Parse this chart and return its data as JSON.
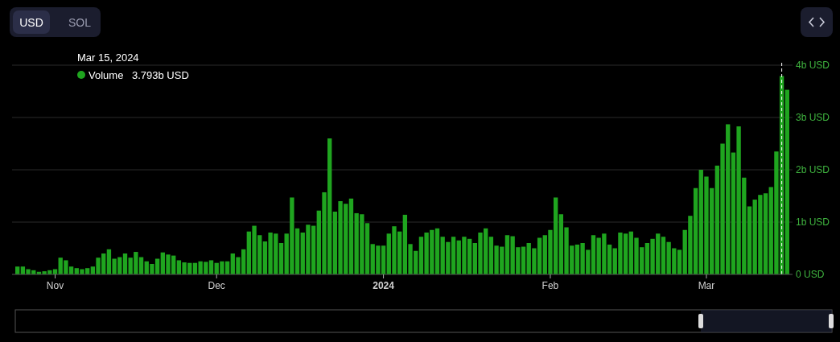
{
  "chart_data": {
    "type": "bar",
    "x": [
      "2023-10-25",
      "2023-10-26",
      "2023-10-27",
      "2023-10-28",
      "2023-10-29",
      "2023-10-30",
      "2023-10-31",
      "2023-11-01",
      "2023-11-02",
      "2023-11-03",
      "2023-11-04",
      "2023-11-05",
      "2023-11-06",
      "2023-11-07",
      "2023-11-08",
      "2023-11-09",
      "2023-11-10",
      "2023-11-11",
      "2023-11-12",
      "2023-11-13",
      "2023-11-14",
      "2023-11-15",
      "2023-11-16",
      "2023-11-17",
      "2023-11-18",
      "2023-11-19",
      "2023-11-20",
      "2023-11-21",
      "2023-11-22",
      "2023-11-23",
      "2023-11-24",
      "2023-11-25",
      "2023-11-26",
      "2023-11-27",
      "2023-11-28",
      "2023-11-29",
      "2023-11-30",
      "2023-12-01",
      "2023-12-02",
      "2023-12-03",
      "2023-12-04",
      "2023-12-05",
      "2023-12-06",
      "2023-12-07",
      "2023-12-08",
      "2023-12-09",
      "2023-12-10",
      "2023-12-11",
      "2023-12-12",
      "2023-12-13",
      "2023-12-14",
      "2023-12-15",
      "2023-12-16",
      "2023-12-17",
      "2023-12-18",
      "2023-12-19",
      "2023-12-20",
      "2023-12-21",
      "2023-12-22",
      "2023-12-23",
      "2023-12-24",
      "2023-12-25",
      "2023-12-26",
      "2023-12-27",
      "2023-12-28",
      "2023-12-29",
      "2023-12-30",
      "2023-12-31",
      "2024-01-01",
      "2024-01-02",
      "2024-01-03",
      "2024-01-04",
      "2024-01-05",
      "2024-01-06",
      "2024-01-07",
      "2024-01-08",
      "2024-01-09",
      "2024-01-10",
      "2024-01-11",
      "2024-01-12",
      "2024-01-13",
      "2024-01-14",
      "2024-01-15",
      "2024-01-16",
      "2024-01-17",
      "2024-01-18",
      "2024-01-19",
      "2024-01-20",
      "2024-01-21",
      "2024-01-22",
      "2024-01-23",
      "2024-01-24",
      "2024-01-25",
      "2024-01-26",
      "2024-01-27",
      "2024-01-28",
      "2024-01-29",
      "2024-01-30",
      "2024-01-31",
      "2024-02-01",
      "2024-02-02",
      "2024-02-03",
      "2024-02-04",
      "2024-02-05",
      "2024-02-06",
      "2024-02-07",
      "2024-02-08",
      "2024-02-09",
      "2024-02-10",
      "2024-02-11",
      "2024-02-12",
      "2024-02-13",
      "2024-02-14",
      "2024-02-15",
      "2024-02-16",
      "2024-02-17",
      "2024-02-18",
      "2024-02-19",
      "2024-02-20",
      "2024-02-21",
      "2024-02-22",
      "2024-02-23",
      "2024-02-24",
      "2024-02-25",
      "2024-02-26",
      "2024-02-27",
      "2024-02-28",
      "2024-02-29",
      "2024-03-01",
      "2024-03-02",
      "2024-03-03",
      "2024-03-04",
      "2024-03-05",
      "2024-03-06",
      "2024-03-07",
      "2024-03-08",
      "2024-03-09",
      "2024-03-10",
      "2024-03-11",
      "2024-03-12",
      "2024-03-13",
      "2024-03-14",
      "2024-03-15",
      "2024-03-16"
    ],
    "series": [
      {
        "name": "Volume",
        "color": "#1fa51f",
        "values": [
          0.15,
          0.15,
          0.1,
          0.08,
          0.05,
          0.06,
          0.08,
          0.1,
          0.32,
          0.27,
          0.15,
          0.12,
          0.1,
          0.12,
          0.15,
          0.32,
          0.4,
          0.48,
          0.3,
          0.33,
          0.4,
          0.32,
          0.43,
          0.33,
          0.25,
          0.2,
          0.3,
          0.42,
          0.38,
          0.36,
          0.27,
          0.23,
          0.22,
          0.22,
          0.25,
          0.24,
          0.27,
          0.22,
          0.25,
          0.25,
          0.4,
          0.33,
          0.48,
          0.82,
          0.93,
          0.75,
          0.63,
          0.8,
          0.78,
          0.6,
          0.78,
          1.47,
          0.88,
          0.8,
          0.95,
          0.93,
          1.22,
          1.57,
          2.6,
          1.2,
          1.4,
          1.35,
          1.45,
          1.17,
          1.15,
          0.98,
          0.58,
          0.55,
          0.55,
          0.78,
          0.92,
          0.82,
          1.14,
          0.58,
          0.45,
          0.72,
          0.8,
          0.85,
          0.88,
          0.72,
          0.62,
          0.72,
          0.65,
          0.72,
          0.68,
          0.6,
          0.8,
          0.88,
          0.72,
          0.55,
          0.53,
          0.75,
          0.73,
          0.52,
          0.53,
          0.6,
          0.5,
          0.7,
          0.75,
          0.85,
          1.47,
          1.15,
          0.9,
          0.55,
          0.57,
          0.6,
          0.47,
          0.75,
          0.7,
          0.78,
          0.57,
          0.5,
          0.8,
          0.78,
          0.82,
          0.7,
          0.52,
          0.6,
          0.68,
          0.78,
          0.72,
          0.62,
          0.5,
          0.47,
          0.85,
          1.12,
          1.65,
          2.0,
          1.87,
          1.65,
          2.08,
          2.5,
          2.87,
          2.33,
          2.83,
          1.85,
          1.3,
          1.43,
          1.52,
          1.55,
          1.67,
          2.35,
          3.793,
          3.53
        ]
      }
    ],
    "xlim": [
      "2023-10-24",
      "2024-03-17"
    ],
    "xticks": [
      {
        "value": "2023-11-01",
        "label": "Nov"
      },
      {
        "value": "2023-12-01",
        "label": "Dec"
      },
      {
        "value": "2024-01-01",
        "label": "2024"
      },
      {
        "value": "2024-02-01",
        "label": "Feb"
      },
      {
        "value": "2024-03-01",
        "label": "Mar"
      }
    ],
    "ylim": [
      0,
      4
    ],
    "yticks": [
      {
        "value": 0,
        "label": "0 USD"
      },
      {
        "value": 1,
        "label": "1b USD"
      },
      {
        "value": 2,
        "label": "2b USD"
      },
      {
        "value": 3,
        "label": "3b USD"
      },
      {
        "value": 4,
        "label": "4b USD"
      }
    ],
    "grid": "y",
    "legend": "top left",
    "ref_lines": [
      {
        "axis": "x",
        "value": "2024-03-15",
        "color": "#ffffff",
        "line_style": "dashed"
      }
    ],
    "annotations": [
      "USD",
      "SOL",
      "Mar 15, 2024",
      "3.793b USD"
    ]
  }
}
